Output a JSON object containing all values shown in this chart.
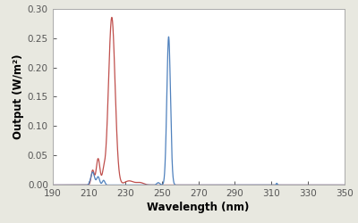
{
  "title": "",
  "xlabel": "Wavelength (nm)",
  "ylabel": "Output (W/m²)",
  "xlim": [
    190,
    350
  ],
  "ylim": [
    0,
    0.3
  ],
  "xticks": [
    190,
    210,
    230,
    250,
    270,
    290,
    310,
    330,
    350
  ],
  "yticks": [
    0.0,
    0.05,
    0.1,
    0.15,
    0.2,
    0.25,
    0.3
  ],
  "red_color": "#c0504d",
  "blue_color": "#4f81bd",
  "background_color": "#e8e8e0",
  "plot_bg": "#ffffff",
  "spine_color": "#aaaaaa"
}
